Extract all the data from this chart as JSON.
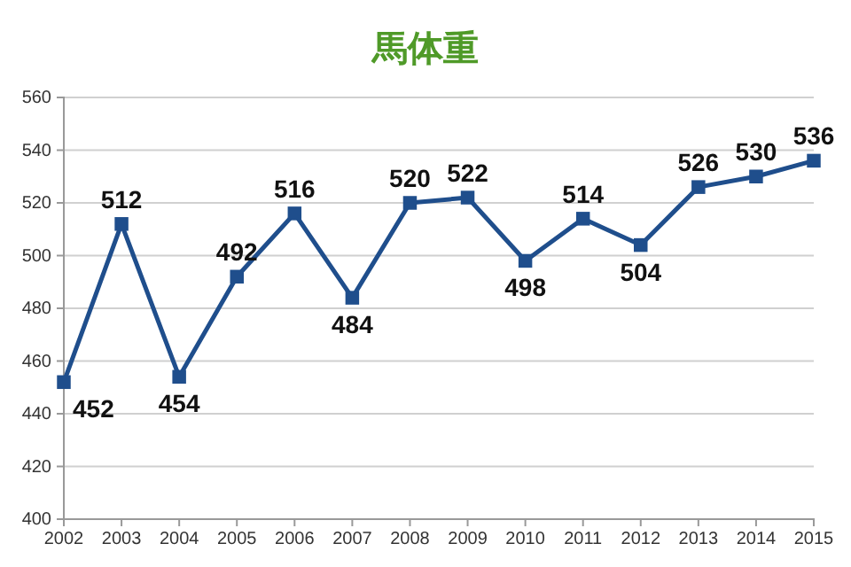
{
  "chart_data": {
    "type": "line",
    "title": "馬体重",
    "categories": [
      "2002",
      "2003",
      "2004",
      "2005",
      "2006",
      "2007",
      "2008",
      "2009",
      "2010",
      "2011",
      "2012",
      "2013",
      "2014",
      "2015"
    ],
    "series": [
      {
        "color": "#1f4e8c",
        "values": [
          452,
          512,
          454,
          492,
          516,
          484,
          520,
          522,
          498,
          514,
          504,
          526,
          530,
          536
        ]
      }
    ],
    "ylim": [
      400,
      560
    ],
    "yticks": [
      400,
      420,
      440,
      460,
      480,
      500,
      520,
      540,
      560
    ],
    "grid": "y",
    "marker": "square",
    "line_style": "solid",
    "data_labels": true
  }
}
